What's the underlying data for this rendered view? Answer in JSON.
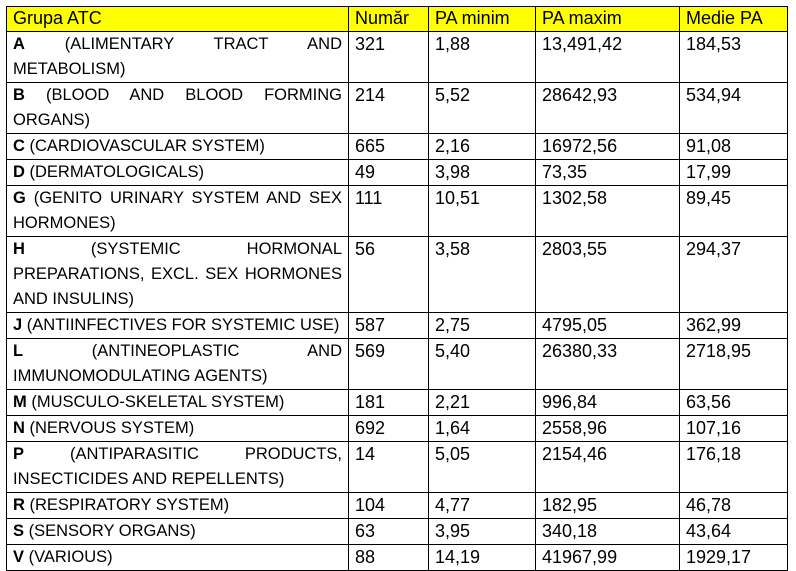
{
  "headers": [
    "Grupa ATC",
    "Număr",
    "PA minim",
    "PA maxim",
    "Medie PA"
  ],
  "rows": [
    {
      "code": "A",
      "desc": " (ALIMENTARY TRACT AND METABOLISM)",
      "numar": "321",
      "min": "1,88",
      "max": "13,491,42",
      "medie": "184,53"
    },
    {
      "code": "B",
      "desc": " (BLOOD AND BLOOD FORMING ORGANS)",
      "numar": "214",
      "min": "5,52",
      "max": "28642,93",
      "medie": "534,94"
    },
    {
      "code": "C",
      "desc": " (CARDIOVASCULAR SYSTEM)",
      "numar": "665",
      "min": "2,16",
      "max": "16972,56",
      "medie": "91,08"
    },
    {
      "code": "D",
      "desc": " (DERMATOLOGICALS)",
      "numar": "49",
      "min": "3,98",
      "max": "73,35",
      "medie": "17,99"
    },
    {
      "code": "G",
      "desc": " (GENITO URINARY SYSTEM AND SEX HORMONES)",
      "numar": "111",
      "min": "10,51",
      "max": "1302,58",
      "medie": "89,45"
    },
    {
      "code": "H",
      "desc": " (SYSTEMIC HORMONAL PREPARATIONS, EXCL. SEX HORMONES AND INSULINS)",
      "numar": "56",
      "min": "3,58",
      "max": "2803,55",
      "medie": "294,37"
    },
    {
      "code": "J",
      "desc": " (ANTIINFECTIVES FOR SYSTEMIC USE)",
      "numar": "587",
      "min": "2,75",
      "max": "4795,05",
      "medie": "362,99"
    },
    {
      "code": "L",
      "desc": " (ANTINEOPLASTIC AND IMMUNOMODULATING AGENTS)",
      "numar": "569",
      "min": "5,40",
      "max": "26380,33",
      "medie": "2718,95"
    },
    {
      "code": "M",
      "desc": " (MUSCULO-SKELETAL SYSTEM)",
      "numar": "181",
      "min": "2,21",
      "max": "996,84",
      "medie": "63,56"
    },
    {
      "code": "N",
      "desc": " (NERVOUS SYSTEM)",
      "numar": "692",
      "min": "1,64",
      "max": "2558,96",
      "medie": "107,16"
    },
    {
      "code": "P",
      "desc": " (ANTIPARASITIC PRODUCTS, INSECTICIDES AND REPELLENTS)",
      "numar": "14",
      "min": "5,05",
      "max": "2154,46",
      "medie": "176,18"
    },
    {
      "code": "R",
      "desc": " (RESPIRATORY SYSTEM)",
      "numar": "104",
      "min": "4,77",
      "max": "182,95",
      "medie": "46,78"
    },
    {
      "code": "S",
      "desc": " (SENSORY ORGANS)",
      "numar": "63",
      "min": "3,95",
      "max": "340,18",
      "medie": "43,64"
    },
    {
      "code": "V",
      "desc": " (VARIOUS)",
      "numar": "88",
      "min": "14,19",
      "max": "41967,99",
      "medie": "1929,17"
    }
  ],
  "colors": {
    "header_bg": "#ffff00",
    "border": "#000000"
  }
}
